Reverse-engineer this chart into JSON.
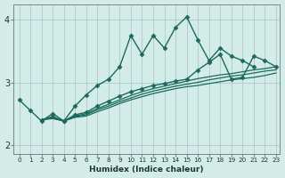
{
  "xlabel": "Humidex (Indice chaleur)",
  "bg_color": "#d4ece8",
  "grid_color": "#aacccc",
  "line_color": "#1a6b5a",
  "xlim": [
    -0.5,
    23.3
  ],
  "ylim": [
    1.85,
    4.25
  ],
  "xticks": [
    0,
    1,
    2,
    3,
    4,
    5,
    6,
    7,
    8,
    9,
    10,
    11,
    12,
    13,
    14,
    15,
    16,
    17,
    18,
    19,
    20,
    21,
    22,
    23
  ],
  "yticks": [
    2,
    3,
    4
  ],
  "series": [
    {
      "x": [
        0,
        1,
        2,
        3,
        4,
        5,
        6,
        7,
        8,
        9,
        10,
        11,
        12,
        13,
        14,
        15,
        16,
        17,
        18,
        19,
        20,
        21,
        22,
        23
      ],
      "y": [
        2.72,
        2.55,
        2.38,
        2.5,
        2.38,
        2.62,
        2.8,
        2.95,
        3.05,
        3.25,
        3.75,
        3.45,
        3.75,
        3.55,
        3.88,
        4.05,
        3.68,
        3.35,
        3.55,
        3.42,
        3.35,
        3.25,
        null,
        null
      ],
      "marker": "D",
      "markersize": 2.5,
      "linewidth": 1.0
    },
    {
      "x": [
        2,
        3,
        4,
        5,
        6,
        7,
        8,
        9,
        10,
        11,
        12,
        13,
        14,
        15,
        16,
        17,
        18,
        19,
        20,
        21,
        22,
        23
      ],
      "y": [
        2.4,
        2.45,
        2.38,
        2.48,
        2.52,
        2.62,
        2.7,
        2.78,
        2.85,
        2.9,
        2.95,
        2.98,
        3.02,
        3.05,
        3.2,
        3.32,
        3.45,
        3.05,
        3.08,
        3.42,
        3.35,
        3.25
      ],
      "marker": "D",
      "markersize": 2.5,
      "linewidth": 1.0
    },
    {
      "x": [
        2,
        3,
        4,
        5,
        6,
        7,
        8,
        9,
        10,
        11,
        12,
        13,
        14,
        15,
        16,
        17,
        18,
        19,
        20,
        21,
        22,
        23
      ],
      "y": [
        2.4,
        2.44,
        2.38,
        2.46,
        2.5,
        2.58,
        2.65,
        2.72,
        2.79,
        2.85,
        2.9,
        2.94,
        2.98,
        3.02,
        3.06,
        3.09,
        3.12,
        3.14,
        3.17,
        3.2,
        3.22,
        3.25
      ],
      "marker": null,
      "markersize": 0,
      "linewidth": 0.9
    },
    {
      "x": [
        2,
        3,
        4,
        5,
        6,
        7,
        8,
        9,
        10,
        11,
        12,
        13,
        14,
        15,
        16,
        17,
        18,
        19,
        20,
        21,
        22,
        23
      ],
      "y": [
        2.4,
        2.43,
        2.38,
        2.45,
        2.48,
        2.56,
        2.62,
        2.69,
        2.75,
        2.81,
        2.86,
        2.9,
        2.94,
        2.97,
        3.0,
        3.04,
        3.07,
        3.1,
        3.12,
        3.15,
        3.18,
        3.2
      ],
      "marker": null,
      "markersize": 0,
      "linewidth": 0.9
    },
    {
      "x": [
        2,
        3,
        4,
        5,
        6,
        7,
        8,
        9,
        10,
        11,
        12,
        13,
        14,
        15,
        16,
        17,
        18,
        19,
        20,
        21,
        22,
        23
      ],
      "y": [
        2.4,
        2.42,
        2.38,
        2.44,
        2.46,
        2.53,
        2.59,
        2.66,
        2.72,
        2.77,
        2.82,
        2.86,
        2.9,
        2.93,
        2.95,
        2.98,
        3.01,
        3.04,
        3.06,
        3.08,
        3.11,
        3.15
      ],
      "marker": null,
      "markersize": 0,
      "linewidth": 0.9
    }
  ]
}
